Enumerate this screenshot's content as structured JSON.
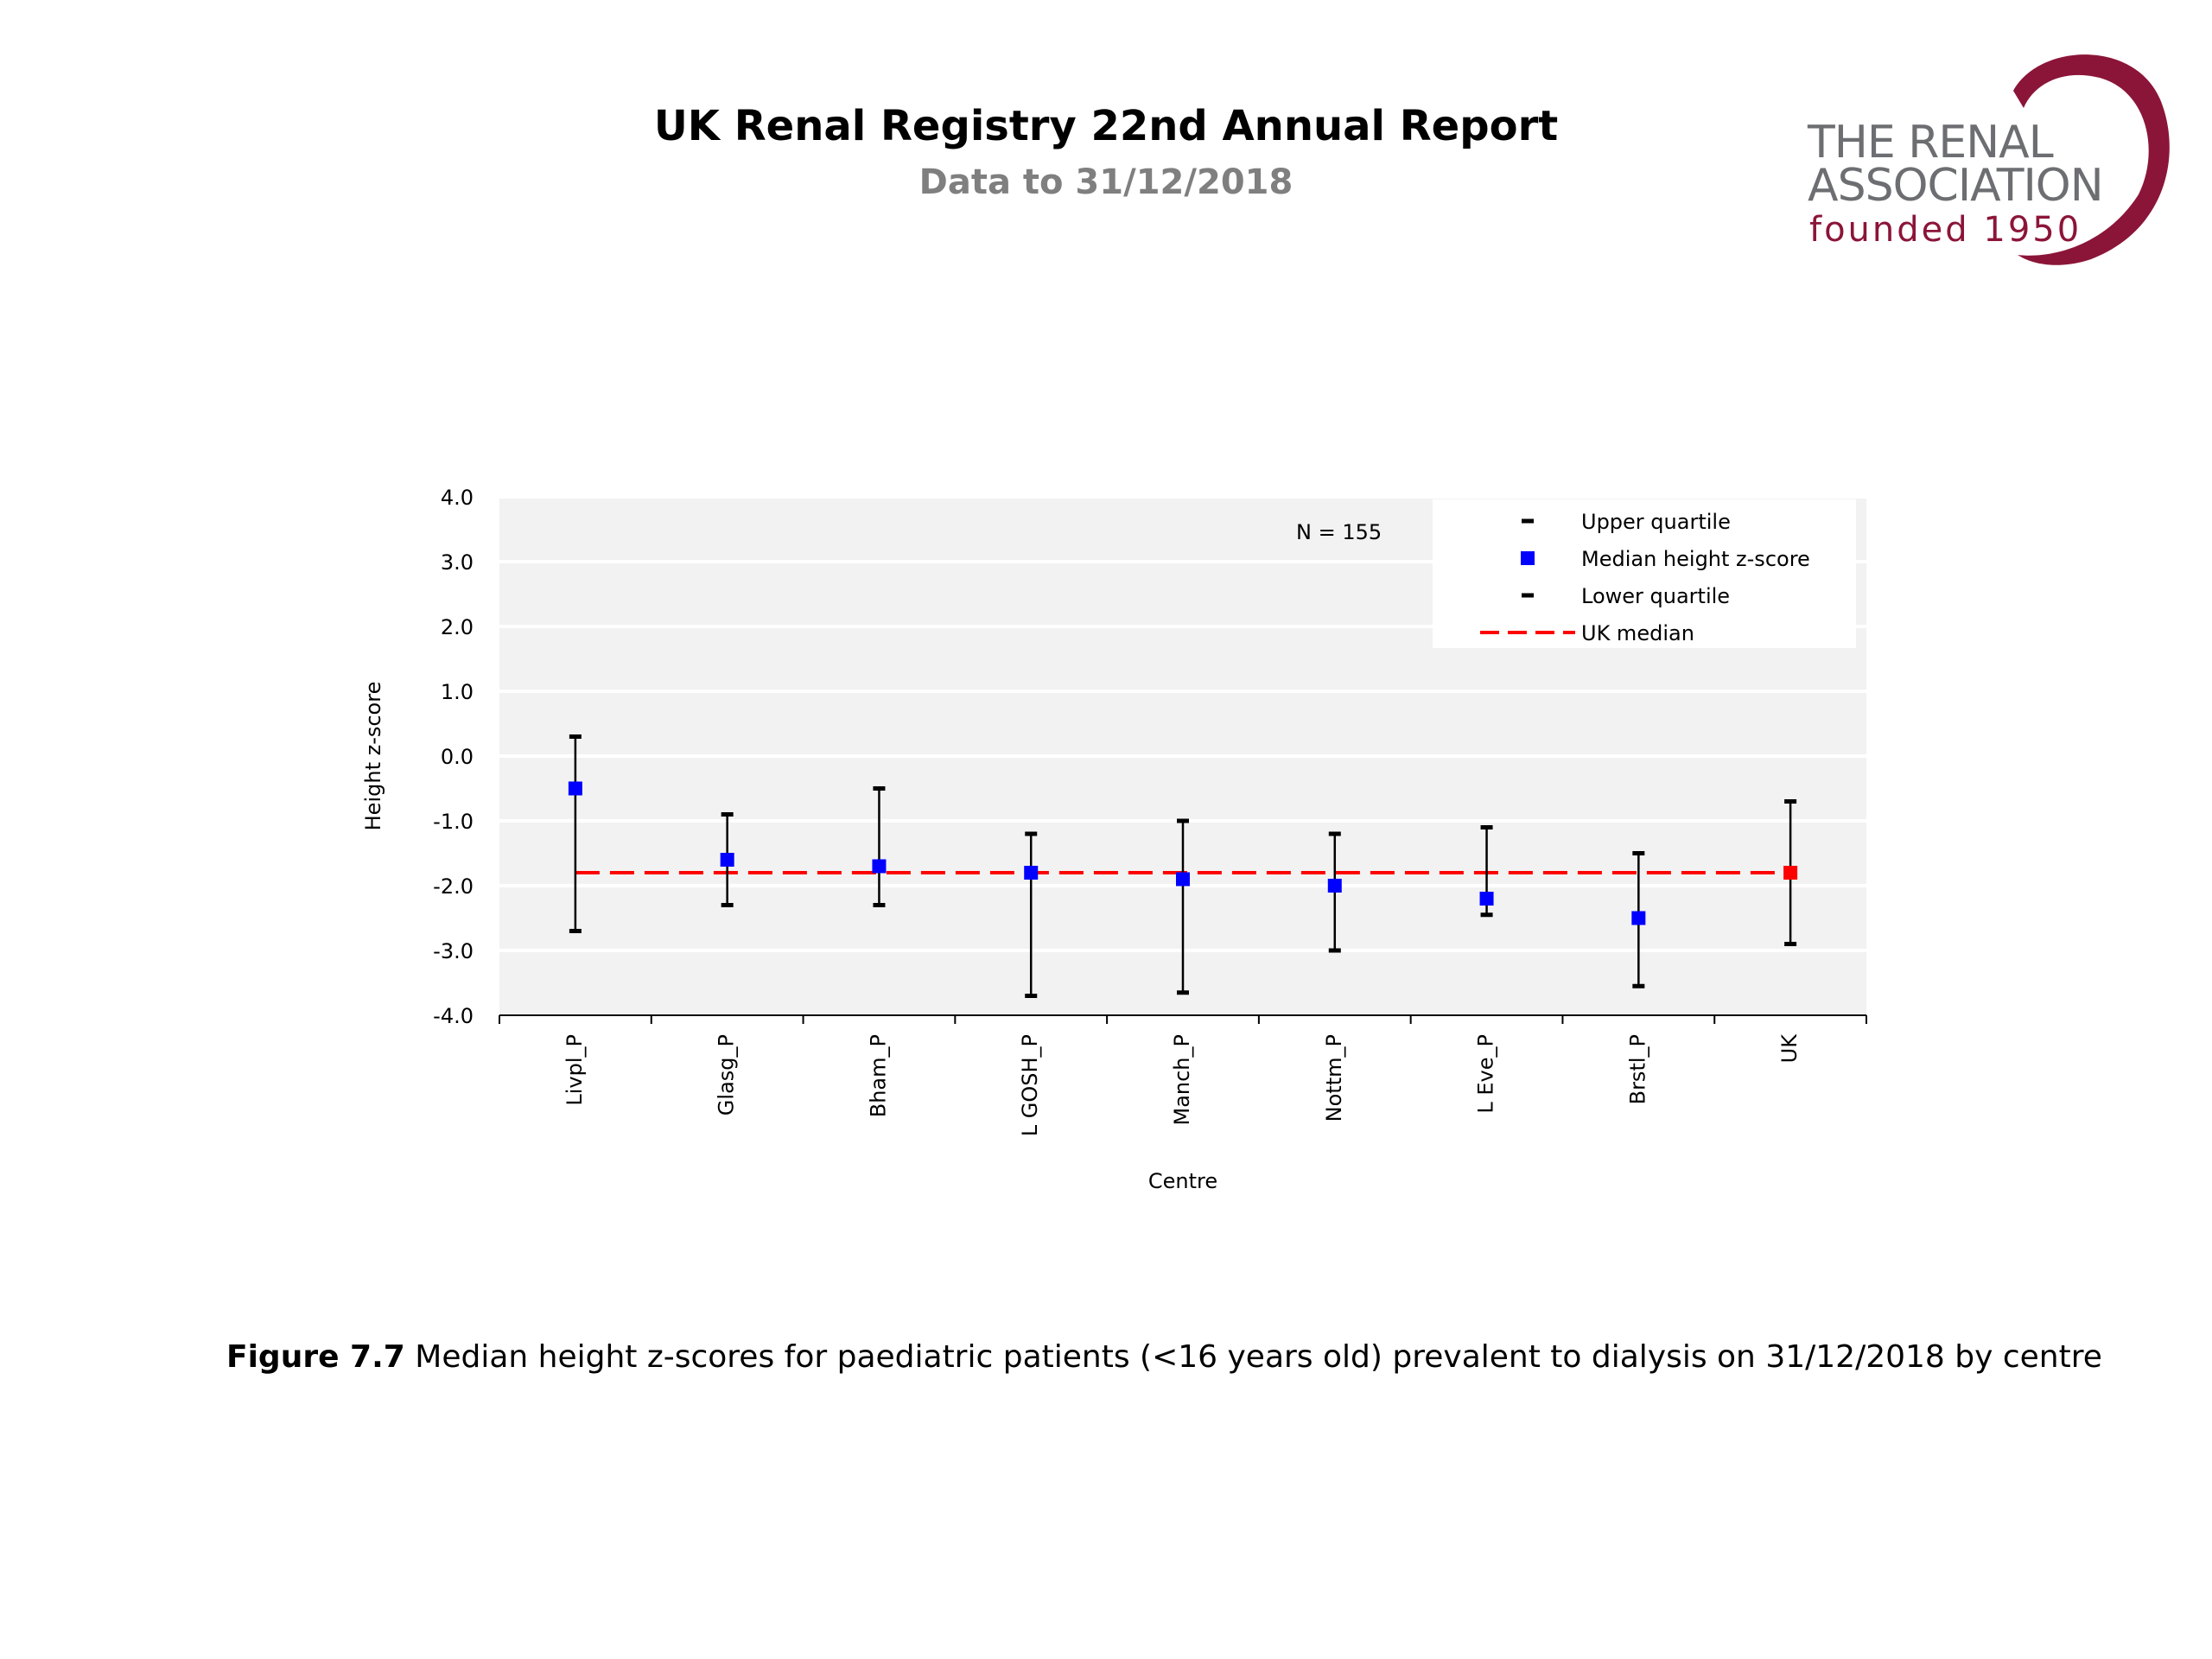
{
  "header": {
    "title": "UK Renal Registry 22nd Annual Report",
    "subtitle": "Data to 31/12/2018"
  },
  "logo": {
    "line1": "THE RENAL",
    "line2": "ASSOCIATION",
    "line3": "founded 1950",
    "text_color": "#6d6e71",
    "accent_color": "#8b1538"
  },
  "caption": {
    "label": "Figure 7.7",
    "text": " Median height z-scores for paediatric patients (<16 years old) prevalent to dialysis on 31/12/2018 by centre"
  },
  "chart_data": {
    "type": "scatter",
    "xlabel": "Centre",
    "ylabel": "Height z-score",
    "ylim": [
      -4.0,
      4.0
    ],
    "yticks": [
      "4.0",
      "3.0",
      "2.0",
      "1.0",
      "0.0",
      "-1.0",
      "-2.0",
      "-3.0",
      "-4.0"
    ],
    "grid": true,
    "annotation": "N = 155",
    "legend_position": "top-right",
    "categories": [
      "Livpl_P",
      "Glasg_P",
      "Bham_P",
      "L GOSH_P",
      "Manch_P",
      "Nottm_P",
      "L Eve_P",
      "Brstl_P",
      "UK"
    ],
    "series": [
      {
        "name": "Upper quartile",
        "values": [
          0.3,
          -0.9,
          -0.5,
          -1.2,
          -1.0,
          -1.2,
          -1.1,
          -1.5,
          -0.7
        ]
      },
      {
        "name": "Median height z-score",
        "values": [
          -0.5,
          -1.6,
          -1.7,
          -1.8,
          -1.9,
          -2.0,
          -2.2,
          -2.5,
          -1.8
        ]
      },
      {
        "name": "Lower quartile",
        "values": [
          -2.7,
          -2.3,
          -2.3,
          -3.7,
          -3.65,
          -3.0,
          -2.45,
          -3.55,
          -2.9
        ]
      }
    ],
    "uk_median": -1.8,
    "uk_median_label": "UK median",
    "colors": {
      "median": "#0000ff",
      "uk_point": "#ff0000",
      "uk_median_line": "#ff0000",
      "plot_bg": "#f2f2f2",
      "whisker": "#000000"
    }
  }
}
